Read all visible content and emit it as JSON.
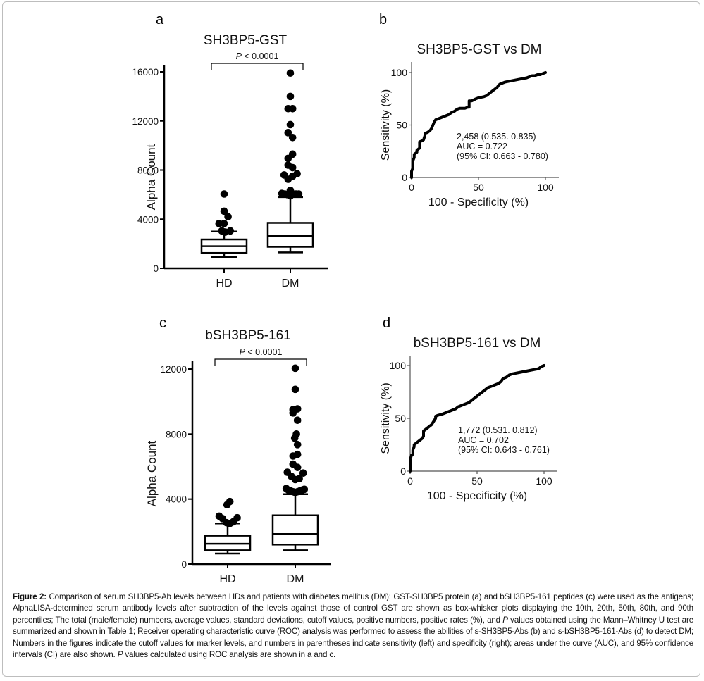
{
  "figure": {
    "caption_label": "Figure 2:",
    "caption_segments": [
      {
        "text": " Comparison of serum SH3BP5-Ab levels between HDs and patients with diabetes mellitus (DM); GST-SH3BP5 protein (a) and bSH3BP5-161 peptides (c) were used as the antigens; AlphaLISA-determined serum antibody levels after subtraction of the levels against those of control GST are shown as box-whisker plots displaying the 10th, 20th, 50th, 80th, and 90th percentiles; The total (male/female) numbers, average values, standard deviations, cutoff values, positive numbers, positive rates (%), and ",
        "italic": false
      },
      {
        "text": "P",
        "italic": true
      },
      {
        "text": " values obtained using the Mann–Whitney U test are summarized and shown in Table 1; Receiver operating characteristic curve (ROC) analysis was performed to assess the abilities of s-SH3BP5-Abs (b) and s-bSH3BP5-161-Abs (d) to detect DM; Numbers in the figures indicate the cutoff values for marker levels, and numbers in parentheses indicate sensitivity (left) and specificity (right); areas under the curve (AUC), and 95% confidence intervals (CI) are also shown. ",
        "italic": false
      },
      {
        "text": "P",
        "italic": true
      },
      {
        "text": " values calculated using ROC analysis are shown in a and c.",
        "italic": false
      }
    ]
  },
  "chart_data": [
    {
      "panel": "a",
      "type": "box",
      "title": "SH3BP5-GST",
      "xlabel": "",
      "ylabel": "Alpha Count",
      "ylim": [
        0,
        16000
      ],
      "yticks": [
        0,
        4000,
        8000,
        12000,
        16000
      ],
      "categories": [
        "HD",
        "DM"
      ],
      "significance": {
        "p_italic": "P",
        "p_text": " < 0.0001",
        "between": [
          "HD",
          "DM"
        ]
      },
      "boxes": [
        {
          "name": "HD",
          "whisker_low": 900,
          "q1": 1250,
          "median": 1800,
          "q3": 2350,
          "whisker_high": 3000,
          "outliers": [
            [
              0,
              6050
            ],
            [
              0,
              4650
            ],
            [
              0.35,
              4200
            ],
            [
              -0.45,
              3650
            ],
            [
              0,
              3650
            ],
            [
              -0.2,
              3050
            ],
            [
              0.1,
              2950
            ],
            [
              0.55,
              3050
            ]
          ]
        },
        {
          "name": "DM",
          "whisker_low": 1300,
          "q1": 1750,
          "median": 2650,
          "q3": 3700,
          "whisker_high": 5800,
          "outliers": [
            [
              0,
              15900
            ],
            [
              0,
              14000
            ],
            [
              -0.2,
              13000
            ],
            [
              0.2,
              13000
            ],
            [
              0,
              11700
            ],
            [
              -0.2,
              11050
            ],
            [
              0.2,
              10650
            ],
            [
              0.2,
              9300
            ],
            [
              -0.2,
              8950
            ],
            [
              -0.2,
              8400
            ],
            [
              0.2,
              8200
            ],
            [
              -0.55,
              7600
            ],
            [
              0.6,
              7700
            ],
            [
              0.2,
              7500
            ],
            [
              -0.2,
              7250
            ],
            [
              0,
              6350
            ],
            [
              -0.75,
              6100
            ],
            [
              -0.5,
              6050
            ],
            [
              -0.25,
              6000
            ],
            [
              0.25,
              6050
            ],
            [
              0.5,
              6050
            ],
            [
              0.75,
              6050
            ],
            [
              0,
              5900
            ]
          ]
        }
      ]
    },
    {
      "panel": "b",
      "type": "line",
      "title": "SH3BP5-GST vs DM",
      "xlabel": "100 - Specificity (%)",
      "ylabel": "Sensitivity (%)",
      "xlim": [
        0,
        100
      ],
      "ylim": [
        0,
        100
      ],
      "xticks": [
        0,
        50,
        100
      ],
      "yticks": [
        0,
        50,
        100
      ],
      "annotation": [
        "2,458 (0.535. 0.835)",
        "AUC = 0.722",
        "(95% CI: 0.663 - 0.780)"
      ],
      "series": [
        {
          "name": "ROC",
          "x": [
            0,
            0,
            1,
            1,
            2,
            2,
            4,
            4,
            6,
            6,
            8,
            9,
            10,
            10,
            12,
            14,
            15,
            16,
            17,
            18,
            20,
            22,
            24,
            26,
            28,
            30,
            32,
            34,
            36,
            38,
            40,
            42,
            43,
            43,
            45,
            48,
            50,
            54,
            56,
            58,
            60,
            62,
            64,
            65,
            66,
            70,
            74,
            78,
            82,
            86,
            88,
            90,
            92,
            94,
            96,
            98,
            100
          ],
          "y": [
            0,
            6,
            9,
            16,
            19,
            22,
            24,
            26,
            28,
            34,
            35,
            36,
            40,
            42,
            43,
            45,
            47,
            50,
            53,
            55,
            56,
            57,
            58,
            59,
            60,
            62,
            63,
            65,
            66,
            66,
            66,
            67,
            67,
            73,
            73,
            75,
            76,
            77,
            78,
            80,
            82,
            84,
            86,
            88,
            89,
            91,
            92,
            93,
            94,
            95,
            96,
            97,
            97,
            98,
            98,
            99,
            100
          ]
        }
      ]
    },
    {
      "panel": "c",
      "type": "box",
      "title": "bSH3BP5-161",
      "xlabel": "",
      "ylabel": "Alpha Count",
      "ylim": [
        0,
        12000
      ],
      "yticks": [
        0,
        4000,
        8000,
        12000
      ],
      "categories": [
        "HD",
        "DM"
      ],
      "significance": {
        "p_italic": "P",
        "p_text": " < 0.0001",
        "between": [
          "HD",
          "DM"
        ]
      },
      "boxes": [
        {
          "name": "HD",
          "whisker_low": 650,
          "q1": 850,
          "median": 1250,
          "q3": 1750,
          "whisker_high": 2500,
          "outliers": [
            [
              0.2,
              3850
            ],
            [
              -0.05,
              3650
            ],
            [
              -0.75,
              2950
            ],
            [
              -0.45,
              2800
            ],
            [
              -0.1,
              2550
            ],
            [
              0.2,
              2500
            ],
            [
              0.5,
              2600
            ],
            [
              0.85,
              2850
            ]
          ]
        },
        {
          "name": "DM",
          "whisker_low": 850,
          "q1": 1200,
          "median": 1850,
          "q3": 3000,
          "whisker_high": 4300,
          "outliers": [
            [
              0,
              12050
            ],
            [
              0,
              10750
            ],
            [
              -0.2,
              9500
            ],
            [
              0.2,
              9550
            ],
            [
              -0.2,
              9300
            ],
            [
              0.2,
              8850
            ],
            [
              0.1,
              8000
            ],
            [
              -0.05,
              7750
            ],
            [
              0.2,
              7350
            ],
            [
              -0.2,
              6650
            ],
            [
              0.2,
              6750
            ],
            [
              -0.2,
              6150
            ],
            [
              0.2,
              5950
            ],
            [
              -0.7,
              5650
            ],
            [
              -0.35,
              5400
            ],
            [
              0,
              5200
            ],
            [
              0.35,
              5250
            ],
            [
              0.7,
              5600
            ],
            [
              -0.8,
              4650
            ],
            [
              -0.6,
              4550
            ],
            [
              -0.4,
              4500
            ],
            [
              -0.2,
              4450
            ],
            [
              0,
              4400
            ],
            [
              0.2,
              4450
            ],
            [
              0.4,
              4500
            ],
            [
              0.6,
              4550
            ],
            [
              0.8,
              4600
            ]
          ]
        }
      ]
    },
    {
      "panel": "d",
      "type": "line",
      "title": "bSH3BP5-161 vs DM",
      "xlabel": "100 - Specificity (%)",
      "ylabel": "Sensitivity (%)",
      "xlim": [
        0,
        100
      ],
      "ylim": [
        0,
        100
      ],
      "xticks": [
        0,
        50,
        100
      ],
      "yticks": [
        0,
        50,
        100
      ],
      "annotation": [
        "1,772 (0.531. 0.812)",
        "AUC = 0.702",
        "(95% CI: 0.643 - 0.761)"
      ],
      "series": [
        {
          "name": "ROC",
          "x": [
            0,
            0,
            0.5,
            1,
            2,
            2,
            3,
            3,
            5,
            7,
            8,
            9,
            10,
            10,
            12,
            14,
            16,
            17,
            18,
            19,
            19,
            21,
            24,
            26,
            28,
            30,
            32,
            34,
            36,
            38,
            40,
            42,
            44,
            46,
            48,
            50,
            52,
            54,
            56,
            58,
            60,
            62,
            64,
            66,
            68,
            69,
            70,
            72,
            74,
            76,
            80,
            84,
            88,
            92,
            96,
            98,
            100
          ],
          "y": [
            0,
            12,
            13,
            15,
            16,
            20,
            23,
            25,
            27,
            29,
            30,
            31,
            33,
            38,
            40,
            42,
            44,
            46,
            48,
            50,
            52,
            53,
            54,
            55,
            56,
            57,
            58,
            59,
            61,
            62,
            63,
            64,
            65,
            67,
            69,
            71,
            73,
            75,
            77,
            79,
            80,
            81,
            82,
            83,
            85,
            87,
            88,
            89,
            91,
            92,
            93,
            94,
            95,
            96,
            97,
            99,
            100
          ]
        }
      ]
    }
  ]
}
